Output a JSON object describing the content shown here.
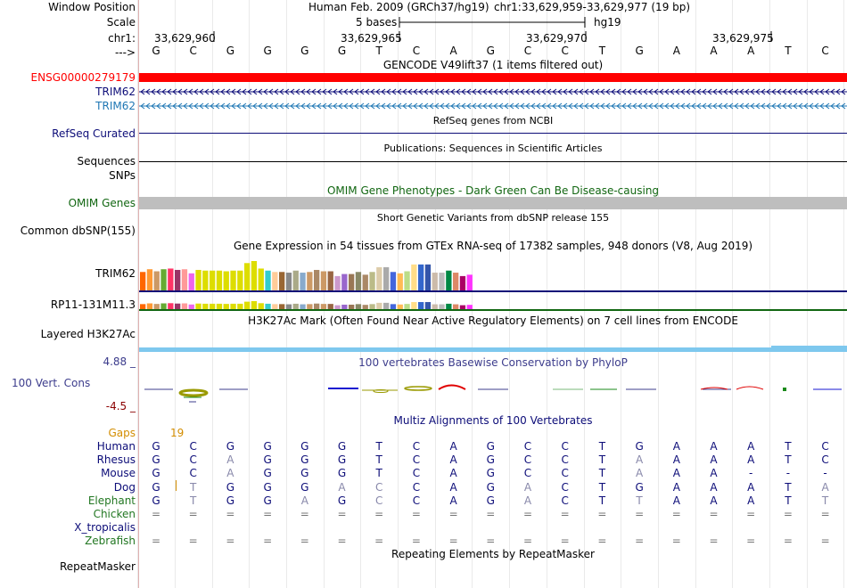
{
  "header": {
    "window_position_label": "Window Position",
    "scale_label": "Scale",
    "chr_label": "chr1:",
    "arrow_label": "--->",
    "assembly_title": "Human Feb. 2009 (GRCh37/hg19)",
    "position_text": "chr1:33,629,959-33,629,977 (19 bp)",
    "scale_text": "5 bases",
    "db_text": "hg19",
    "coords": [
      "33,629,960",
      "33,629,965",
      "33,629,970",
      "33,629,975"
    ]
  },
  "bases": [
    "G",
    "C",
    "G",
    "G",
    "G",
    "G",
    "T",
    "C",
    "A",
    "G",
    "C",
    "C",
    "T",
    "G",
    "A",
    "A",
    "A",
    "T",
    "C"
  ],
  "tracks": {
    "gencode": {
      "title": "GENCODE V49lift37 (1 items filtered out)",
      "genes": [
        "ENSG00000279179",
        "TRIM62",
        "TRIM62"
      ]
    },
    "refseq": {
      "title": "RefSeq genes from NCBI",
      "label": "RefSeq Curated"
    },
    "publications": {
      "title": "Publications: Sequences in Scientific Articles",
      "label": "Sequences"
    },
    "snps": {
      "label": "SNPs"
    },
    "omim": {
      "title": "OMIM Gene Phenotypes - Dark Green Can Be Disease-causing",
      "label": "OMIM Genes"
    },
    "dbsnp": {
      "title": "Short Genetic Variants from dbSNP release 155",
      "label": "Common dbSNP(155)"
    },
    "gtex": {
      "title": "Gene Expression in 54 tissues from GTEx RNA-seq of 17382 samples, 948 donors (V8, Aug 2019)",
      "genes": [
        "TRIM62",
        "RP11-131M11.3"
      ]
    },
    "h3k27ac": {
      "title": "H3K27Ac Mark (Often Found Near Active Regulatory Elements) on 7 cell lines from ENCODE",
      "label": "Layered H3K27Ac"
    },
    "conservation": {
      "title": "100 vertebrates Basewise Conservation by PhyloP",
      "label": "100 Vert. Cons",
      "max": "4.88 _",
      "min": "-4.5 _"
    },
    "multiz": {
      "title": "Multiz Alignments of 100 Vertebrates",
      "gaps_label": "Gaps",
      "gap_count": "19",
      "species": [
        "Human",
        "Rhesus",
        "Mouse",
        "Dog",
        "Elephant",
        "Chicken",
        "X_tropicalis",
        "Zebrafish"
      ],
      "rows": {
        "Human": [
          "G",
          "C",
          "G",
          "G",
          "G",
          "G",
          "T",
          "C",
          "A",
          "G",
          "C",
          "C",
          "T",
          "G",
          "A",
          "A",
          "A",
          "T",
          "C"
        ],
        "Rhesus": [
          "G",
          "C",
          "A",
          "G",
          "G",
          "G",
          "T",
          "C",
          "A",
          "G",
          "C",
          "C",
          "T",
          "A",
          "A",
          "A",
          "A",
          "T",
          "C"
        ],
        "Mouse": [
          "G",
          "C",
          "A",
          "G",
          "G",
          "G",
          "T",
          "C",
          "A",
          "G",
          "C",
          "C",
          "T",
          "A",
          "A",
          "A",
          "-",
          "-",
          "-"
        ],
        "Dog": [
          "G",
          "T",
          "G",
          "G",
          "G",
          "A",
          "C",
          "C",
          "A",
          "G",
          "A",
          "C",
          "T",
          "G",
          "A",
          "A",
          "A",
          "T",
          "A"
        ],
        "Elephant": [
          "G",
          "T",
          "G",
          "G",
          "A",
          "G",
          "C",
          "C",
          "A",
          "G",
          "A",
          "C",
          "T",
          "T",
          "A",
          "A",
          "A",
          "T",
          "T"
        ],
        "Chicken": [
          "=",
          "=",
          "=",
          "=",
          "=",
          "=",
          "=",
          "=",
          "=",
          "=",
          "=",
          "=",
          "=",
          "=",
          "=",
          "=",
          "=",
          "=",
          "="
        ],
        "X_tropicalis": [],
        "Zebrafish": [
          "=",
          "=",
          "=",
          "=",
          "=",
          "=",
          "=",
          "=",
          "=",
          "=",
          "=",
          "=",
          "=",
          "=",
          "=",
          "=",
          "=",
          "=",
          "="
        ]
      }
    },
    "repeatmasker": {
      "title": "Repeating Elements by RepeatMasker",
      "label": "RepeatMasker"
    }
  },
  "colors": {
    "gencode_red": "#ff0000",
    "navy": "#0c0c78",
    "trim62_teal": "#1f77b4",
    "omim_green": "#116611",
    "cons_blue": "#3c3c8c",
    "gaps_orange": "#d38d00",
    "species_green": "#227722"
  }
}
